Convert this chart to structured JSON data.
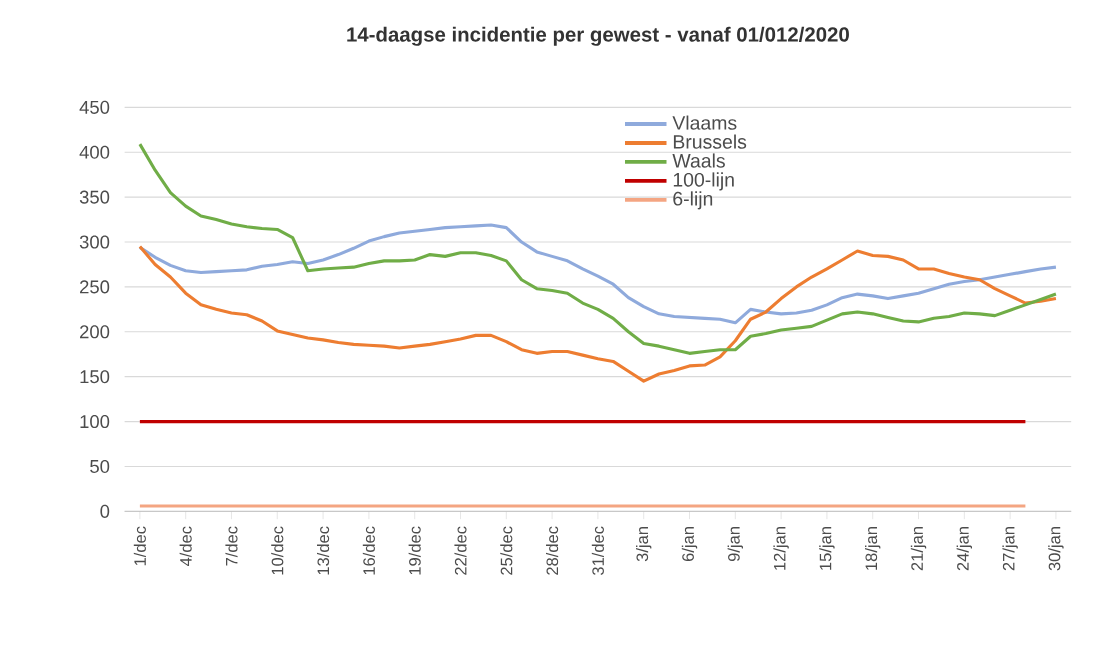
{
  "chart_data": {
    "type": "line",
    "title": "14-daagse incidentie per gewest - vanaf 01/012/2020",
    "categories": [
      "1/dec",
      null,
      null,
      "4/dec",
      null,
      null,
      "7/dec",
      null,
      null,
      "10/dec",
      null,
      null,
      "13/dec",
      null,
      null,
      "16/dec",
      null,
      null,
      "19/dec",
      null,
      null,
      "22/dec",
      null,
      null,
      "25/dec",
      null,
      null,
      "28/dec",
      null,
      null,
      "31/dec",
      null,
      null,
      "3/jan",
      null,
      null,
      "6/jan",
      null,
      null,
      "9/jan",
      null,
      null,
      "12/jan",
      null,
      null,
      "15/jan",
      null,
      null,
      "18/jan",
      null,
      null,
      "21/jan",
      null,
      null,
      "24/jan",
      null,
      null,
      "27/jan",
      null,
      null,
      "30/jan"
    ],
    "series": [
      {
        "name": "Vlaams",
        "color": "#8faadc",
        "values": [
          294,
          283,
          274,
          268,
          266,
          267,
          268,
          269,
          273,
          275,
          278,
          276,
          280,
          286,
          293,
          301,
          306,
          310,
          312,
          314,
          316,
          317,
          318,
          319,
          316,
          300,
          289,
          284,
          279,
          270,
          262,
          253,
          238,
          228,
          220,
          217,
          216,
          215,
          214,
          210,
          225,
          222,
          220,
          221,
          224,
          230,
          238,
          242,
          240,
          237,
          240,
          243,
          248,
          253,
          256,
          258,
          261,
          264,
          267,
          270,
          272
        ]
      },
      {
        "name": "Brussels",
        "color": "#ed7d31",
        "values": [
          295,
          275,
          261,
          243,
          230,
          225,
          221,
          219,
          212,
          201,
          197,
          193,
          191,
          188,
          186,
          185,
          184,
          182,
          184,
          186,
          189,
          192,
          196,
          196,
          189,
          180,
          176,
          178,
          178,
          174,
          170,
          167,
          156,
          145,
          153,
          157,
          162,
          163,
          172,
          190,
          214,
          222,
          237,
          250,
          261,
          270,
          280,
          290,
          285,
          284,
          280,
          270,
          270,
          265,
          261,
          258,
          248,
          240,
          232,
          234,
          237
        ]
      },
      {
        "name": "Waals",
        "color": "#70ad47",
        "values": [
          409,
          380,
          355,
          340,
          329,
          325,
          320,
          317,
          315,
          314,
          305,
          268,
          270,
          271,
          272,
          276,
          279,
          279,
          280,
          286,
          284,
          288,
          288,
          285,
          279,
          258,
          248,
          246,
          243,
          232,
          225,
          215,
          200,
          187,
          184,
          180,
          176,
          178,
          180,
          180,
          195,
          198,
          202,
          204,
          206,
          213,
          220,
          222,
          220,
          216,
          212,
          211,
          215,
          217,
          221,
          220,
          218,
          224,
          230,
          236,
          242
        ]
      },
      {
        "name": "100-lijn",
        "color": "#c00000",
        "values": [
          100,
          100,
          100,
          100,
          100,
          100,
          100,
          100,
          100,
          100,
          100,
          100,
          100,
          100,
          100,
          100,
          100,
          100,
          100,
          100,
          100,
          100,
          100,
          100,
          100,
          100,
          100,
          100,
          100,
          100,
          100,
          100,
          100,
          100,
          100,
          100,
          100,
          100,
          100,
          100,
          100,
          100,
          100,
          100,
          100,
          100,
          100,
          100,
          100,
          100,
          100,
          100,
          100,
          100,
          100,
          100,
          100,
          100,
          100,
          null,
          null
        ]
      },
      {
        "name": "6-lijn",
        "color": "#f4a582",
        "values": [
          6,
          6,
          6,
          6,
          6,
          6,
          6,
          6,
          6,
          6,
          6,
          6,
          6,
          6,
          6,
          6,
          6,
          6,
          6,
          6,
          6,
          6,
          6,
          6,
          6,
          6,
          6,
          6,
          6,
          6,
          6,
          6,
          6,
          6,
          6,
          6,
          6,
          6,
          6,
          6,
          6,
          6,
          6,
          6,
          6,
          6,
          6,
          6,
          6,
          6,
          6,
          6,
          6,
          6,
          6,
          6,
          6,
          6,
          6,
          null,
          null
        ]
      }
    ],
    "ylim": [
      0,
      450
    ],
    "yticks": [
      0,
      50,
      100,
      150,
      200,
      250,
      300,
      350,
      400,
      450
    ],
    "grid": "y",
    "legend": "top right",
    "marker": "none",
    "line_style": "solid"
  }
}
